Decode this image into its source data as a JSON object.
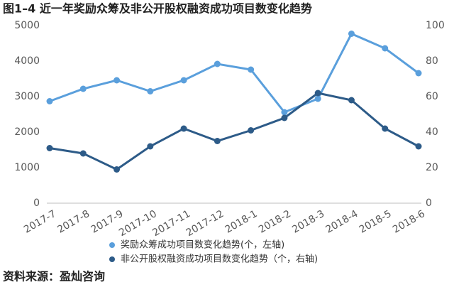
{
  "chart_data": {
    "type": "line",
    "title": "图1–4  近一年奖励众筹及非公开股权融资成功项目数变化趋势",
    "source": "资料来源：盈灿咨询",
    "categories": [
      "2017-7",
      "2017-8",
      "2017-9",
      "2017-10",
      "2017-11",
      "2017-12",
      "2018-1",
      "2018-2",
      "2018-3",
      "2018-4",
      "2018-5",
      "2018-6"
    ],
    "series": [
      {
        "name": "奖励众筹成功项目数变化趋势(个，左轴)",
        "color": "#5a9fdc",
        "values": [
          2870,
          3220,
          3460,
          3150,
          3460,
          3920,
          3760,
          2560,
          2940,
          4770,
          4360,
          3660
        ]
      },
      {
        "name": "非公开股权融资成功项目数变化趋势（个，右轴)",
        "color": "#2d5b88",
        "axis": "y2",
        "values": [
          31,
          28,
          19,
          32,
          42,
          35,
          41,
          48,
          62,
          58,
          42,
          32
        ]
      }
    ],
    "ylim": [
      0,
      5000
    ],
    "yticks": [
      0,
      1000,
      2000,
      3000,
      4000,
      5000
    ],
    "y2lim": [
      0,
      100
    ],
    "y2ticks": [
      0,
      20,
      40,
      60,
      80,
      100
    ]
  }
}
